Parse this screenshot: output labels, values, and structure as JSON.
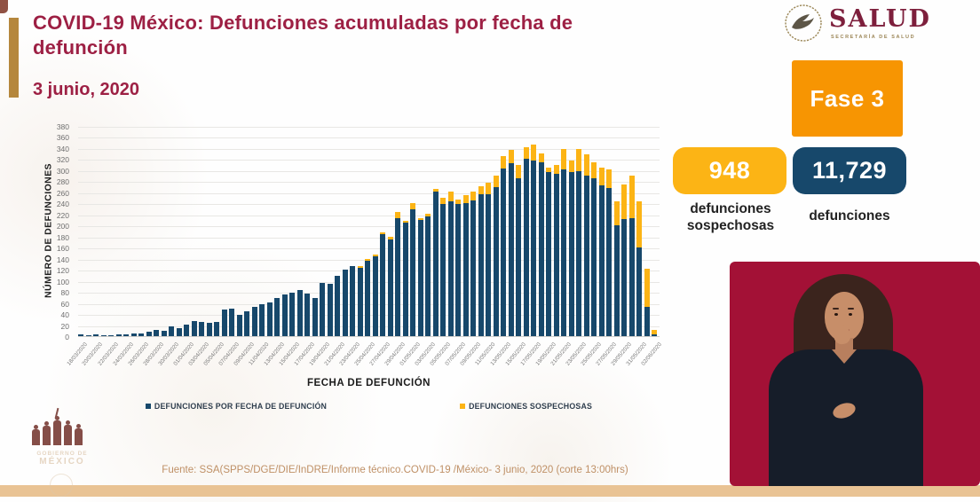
{
  "header": {
    "title": "COVID-19 México: Defunciones acumuladas por fecha de defunción",
    "date": "3 junio, 2020"
  },
  "logo": {
    "name": "SALUD",
    "subtitle": "SECRETARÍA DE SALUD"
  },
  "phase": {
    "label": "Fase 3",
    "color": "#f79502"
  },
  "stats": {
    "suspected": {
      "value": "948",
      "label": "defunciones sospechosas",
      "color": "#fcb415"
    },
    "confirmed": {
      "value": "11,729",
      "label": "defunciones",
      "color": "#17486b"
    }
  },
  "gobierno": {
    "line1": "GOBIERNO DE",
    "line2": "MÉXICO"
  },
  "footer": {
    "source": "Fuente: SSA(SPPS/DGE/DIE/InDRE/Informe técnico.COVID-19 /México- 3 junio, 2020 (corte 13:00hrs)"
  },
  "chart_data": {
    "type": "bar",
    "stacked": true,
    "xlabel": "FECHA DE DEFUNCIÓN",
    "ylabel": "NÚMERO DE DEFUNCIONES",
    "ylim": [
      0,
      380
    ],
    "ytick_step": 20,
    "grid": true,
    "legend_position": "bottom",
    "x_label_every": 2,
    "x": [
      "18/03/2020",
      "19/03/2020",
      "20/03/2020",
      "21/03/2020",
      "22/03/2020",
      "23/03/2020",
      "24/03/2020",
      "25/03/2020",
      "26/03/2020",
      "27/03/2020",
      "28/03/2020",
      "29/03/2020",
      "30/03/2020",
      "31/03/2020",
      "01/04/2020",
      "02/04/2020",
      "03/04/2020",
      "04/04/2020",
      "05/04/2020",
      "06/04/2020",
      "07/04/2020",
      "08/04/2020",
      "09/04/2020",
      "10/04/2020",
      "11/04/2020",
      "12/04/2020",
      "13/04/2020",
      "14/04/2020",
      "15/04/2020",
      "16/04/2020",
      "17/04/2020",
      "18/04/2020",
      "19/04/2020",
      "20/04/2020",
      "21/04/2020",
      "22/04/2020",
      "23/04/2020",
      "24/04/2020",
      "25/04/2020",
      "26/04/2020",
      "27/04/2020",
      "28/04/2020",
      "29/04/2020",
      "30/04/2020",
      "01/05/2020",
      "02/05/2020",
      "03/05/2020",
      "04/05/2020",
      "05/05/2020",
      "06/05/2020",
      "07/05/2020",
      "08/05/2020",
      "09/05/2020",
      "10/05/2020",
      "11/05/2020",
      "12/05/2020",
      "13/05/2020",
      "14/05/2020",
      "15/05/2020",
      "16/05/2020",
      "17/05/2020",
      "18/05/2020",
      "19/05/2020",
      "20/05/2020",
      "21/05/2020",
      "22/05/2020",
      "23/05/2020",
      "24/05/2020",
      "25/05/2020",
      "26/05/2020",
      "27/05/2020",
      "28/05/2020",
      "29/05/2020",
      "30/05/2020",
      "31/05/2020",
      "01/06/2020",
      "02/06/2020"
    ],
    "series": [
      {
        "name": "DEFUNCIONES POR FECHA DE DEFUNCIÓN",
        "color": "#17486b",
        "values": [
          3,
          2,
          3,
          1,
          2,
          4,
          4,
          5,
          5,
          8,
          12,
          10,
          17,
          14,
          21,
          27,
          25,
          24,
          25,
          48,
          50,
          38,
          45,
          53,
          58,
          61,
          69,
          75,
          79,
          83,
          77,
          69,
          96,
          95,
          109,
          120,
          127,
          124,
          136,
          144,
          184,
          174,
          213,
          205,
          229,
          210,
          216,
          262,
          239,
          244,
          239,
          241,
          245,
          257,
          257,
          270,
          303,
          312,
          286,
          320,
          318,
          315,
          297,
          293,
          301,
          297,
          299,
          291,
          286,
          272,
          268,
          200,
          211,
          213,
          160,
          53,
          3
        ]
      },
      {
        "name": "DEFUNCIONES SOSPECHOSAS",
        "color": "#fcb415",
        "values": [
          0,
          0,
          0,
          0,
          0,
          0,
          0,
          0,
          0,
          0,
          0,
          0,
          0,
          0,
          0,
          0,
          0,
          0,
          0,
          0,
          0,
          0,
          0,
          0,
          0,
          0,
          0,
          0,
          0,
          0,
          0,
          0,
          0,
          0,
          0,
          0,
          0,
          2,
          3,
          4,
          3,
          5,
          11,
          4,
          11,
          3,
          5,
          4,
          11,
          17,
          8,
          14,
          16,
          14,
          21,
          21,
          22,
          25,
          24,
          21,
          28,
          16,
          7,
          17,
          37,
          21,
          39,
          38,
          29,
          32,
          33,
          43,
          64,
          77,
          83,
          69,
          8
        ]
      }
    ]
  }
}
